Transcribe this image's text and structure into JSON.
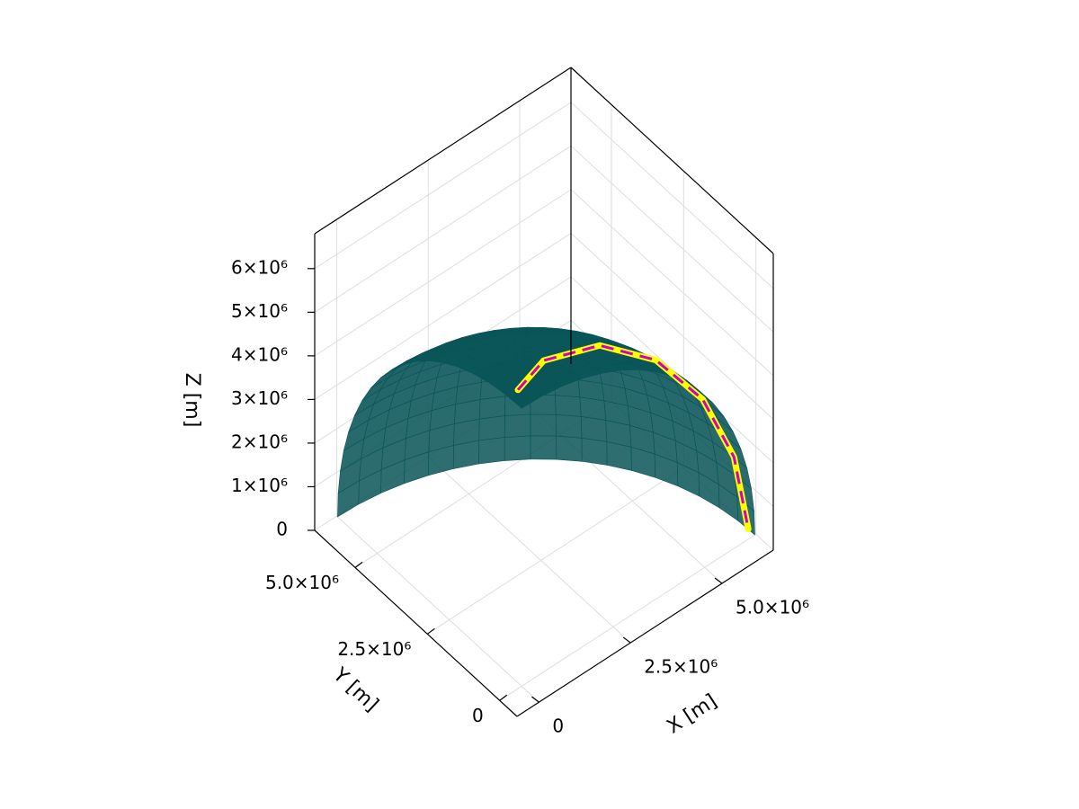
{
  "chart_data": {
    "type": "surface3d",
    "xlabel": "X [m]",
    "ylabel": "Y [m]",
    "zlabel": "Z [m]",
    "xlim": [
      -600000,
      6400000
    ],
    "ylim": [
      -600000,
      6400000
    ],
    "zlim": [
      0,
      6800000
    ],
    "xticks": [
      0,
      {
        "value": 2500000,
        "label": "2.5×10⁶"
      },
      {
        "value": 5000000,
        "label": "5.0×10⁶"
      }
    ],
    "yticks": [
      0,
      {
        "value": 2500000,
        "label": "2.5×10⁶"
      },
      {
        "value": 5000000,
        "label": "5.0×10⁶"
      }
    ],
    "zticks": [
      0,
      {
        "value": 1000000,
        "label": "1×10⁶"
      },
      {
        "value": 2000000,
        "label": "2×10⁶"
      },
      {
        "value": 3000000,
        "label": "3×10⁶"
      },
      {
        "value": 4000000,
        "label": "4×10⁶"
      },
      {
        "value": 5000000,
        "label": "5×10⁶"
      },
      {
        "value": 6000000,
        "label": "6×10⁶"
      }
    ],
    "grid": true,
    "surface_color": "#0a5558",
    "path": {
      "x": [
        278000,
        1351000,
        2994000,
        4406000,
        5476000,
        6139000,
        6367000
      ],
      "y": [
        481000,
        946000,
        1090000,
        937000,
        672000,
        429000,
        222000
      ],
      "z": [
        6347000,
        6154000,
        5517000,
        4505000,
        3186000,
        1649000,
        0
      ],
      "color": "#ffff00",
      "dash_color": "#cc00cc"
    }
  }
}
